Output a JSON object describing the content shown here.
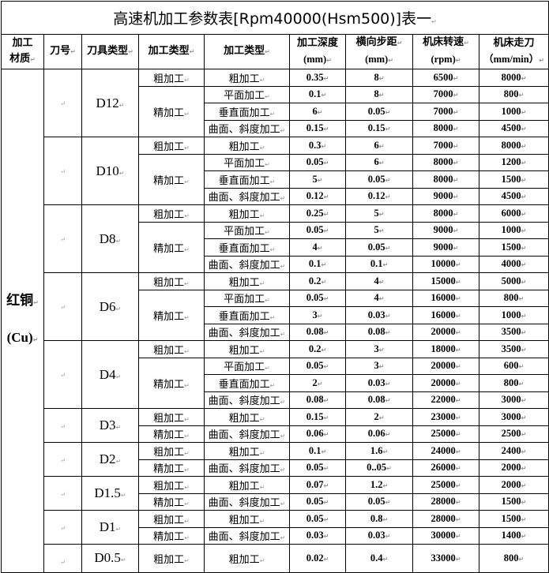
{
  "title": "高速机加工参数表[Rpm40000(Hsm500)]表一",
  "headers": {
    "material": [
      "加工",
      "材质"
    ],
    "tool_no": "刀号",
    "tool_type": "刀具类型",
    "process_type": "加工类型",
    "process_detail": "加工类型",
    "depth": [
      "加工深度",
      "(mm)"
    ],
    "step": [
      "横向步距",
      "(mm)"
    ],
    "rpm": [
      "机床转速",
      "(rpm)"
    ],
    "feed": [
      "机床走刀",
      "（mm/min）"
    ]
  },
  "material": [
    "红铜",
    "(Cu)"
  ],
  "groups": [
    {
      "tool": "D12",
      "rough": {
        "type": "粗加工",
        "sub": "粗加工",
        "depth": "0.35",
        "step": "8",
        "rpm": "6500",
        "feed": "8000"
      },
      "fine_type": "精加工",
      "fine": [
        {
          "sub": "平面加工",
          "depth": "0.1",
          "step": "8",
          "rpm": "7000",
          "feed": "800"
        },
        {
          "sub": "垂直面加工",
          "depth": "6",
          "step": "0.05",
          "rpm": "7000",
          "feed": "1000"
        },
        {
          "sub": "曲面、斜度加工",
          "depth": "0.15",
          "step": "0.15",
          "rpm": "8000",
          "feed": "4500"
        }
      ]
    },
    {
      "tool": "D10",
      "rough": {
        "type": "粗加工",
        "sub": "粗加工",
        "depth": "0.3",
        "step": "6",
        "rpm": "7000",
        "feed": "8000"
      },
      "fine_type": "精加工",
      "fine": [
        {
          "sub": "平面加工",
          "depth": "0.05",
          "step": "6",
          "rpm": "8000",
          "feed": "1200"
        },
        {
          "sub": "垂直面加工",
          "depth": "5",
          "step": "0.05",
          "rpm": "8000",
          "feed": "1500"
        },
        {
          "sub": "曲面、斜度加工",
          "depth": "0.12",
          "step": "0.12",
          "rpm": "9000",
          "feed": "4500"
        }
      ]
    },
    {
      "tool": "D8",
      "rough": {
        "type": "粗加工",
        "sub": "粗加工",
        "depth": "0.25",
        "step": "5",
        "rpm": "8000",
        "feed": "6000"
      },
      "fine_type": "精加工",
      "fine": [
        {
          "sub": "平面加工",
          "depth": "0.05",
          "step": "5",
          "rpm": "9000",
          "feed": "1000"
        },
        {
          "sub": "垂直面加工",
          "depth": "4",
          "step": "0.05",
          "rpm": "9000",
          "feed": "1500"
        },
        {
          "sub": "曲面、斜度加工",
          "depth": "0.1",
          "step": "0.1",
          "rpm": "10000",
          "feed": "4000"
        }
      ]
    },
    {
      "tool": "D6",
      "rough": {
        "type": "粗加工",
        "sub": "粗加工",
        "depth": "0.2",
        "step": "4",
        "rpm": "15000",
        "feed": "5000"
      },
      "fine_type": "精加工",
      "fine": [
        {
          "sub": "平面加工",
          "depth": "0.05",
          "step": "4",
          "rpm": "16000",
          "feed": "800"
        },
        {
          "sub": "垂直面加工",
          "depth": "3",
          "step": "0.03",
          "rpm": "16000",
          "feed": "1000"
        },
        {
          "sub": "曲面、斜度加工",
          "depth": "0.08",
          "step": "0.08",
          "rpm": "20000",
          "feed": "3500"
        }
      ]
    },
    {
      "tool": "D4",
      "rough": {
        "type": "粗加工",
        "sub": "粗加工",
        "depth": "0.2",
        "step": "3",
        "rpm": "18000",
        "feed": "3500"
      },
      "fine_type": "精加工",
      "fine": [
        {
          "sub": "平面加工",
          "depth": "0.05",
          "step": "3",
          "rpm": "20000",
          "feed": "600"
        },
        {
          "sub": "垂直面加工",
          "depth": "2",
          "step": "0.03",
          "rpm": "20000",
          "feed": "800"
        },
        {
          "sub": "曲面、斜度加工",
          "depth": "0.08",
          "step": "0.08",
          "rpm": "22000",
          "feed": "3000"
        }
      ]
    },
    {
      "tool": "D3",
      "rough": {
        "type": "粗加工",
        "sub": "粗加工",
        "depth": "0.15",
        "step": "2",
        "rpm": "23000",
        "feed": "3000"
      },
      "fine_type": "精加工",
      "fine": [
        {
          "sub": "曲面、斜度加工",
          "depth": "0.06",
          "step": "0.06",
          "rpm": "25000",
          "feed": "2500"
        }
      ]
    },
    {
      "tool": "D2",
      "rough": {
        "type": "粗加工",
        "sub": "粗加工",
        "depth": "0.1",
        "step": "1.6",
        "rpm": "24000",
        "feed": "2400"
      },
      "fine_type": "精加工",
      "fine": [
        {
          "sub": "曲面、斜度加工",
          "depth": "0.05",
          "step": "0..05",
          "rpm": "26000",
          "feed": "2000"
        }
      ]
    },
    {
      "tool": "D1.5",
      "rough": {
        "type": "粗加工",
        "sub": "粗加工",
        "depth": "0.07",
        "step": "1.2",
        "rpm": "25000",
        "feed": "2000"
      },
      "fine_type": "精加工",
      "fine": [
        {
          "sub": "曲面、斜度加工",
          "depth": "0.05",
          "step": "0.05",
          "rpm": "28000",
          "feed": "1500"
        }
      ]
    },
    {
      "tool": "D1",
      "rough": {
        "type": "粗加工",
        "sub": "粗加工",
        "depth": "0.05",
        "step": "0.8",
        "rpm": "28000",
        "feed": "1500"
      },
      "fine_type": "精加工",
      "fine": [
        {
          "sub": "曲面、斜度加工",
          "depth": "0.03",
          "step": "0.03",
          "rpm": "30000",
          "feed": "1400"
        }
      ]
    },
    {
      "tool": "D0.5",
      "rough": {
        "type": "粗加工",
        "sub": "粗加工",
        "depth": "0.02",
        "step": "0.4",
        "rpm": "33000",
        "feed": "800"
      },
      "fine_type": "",
      "fine": []
    }
  ]
}
